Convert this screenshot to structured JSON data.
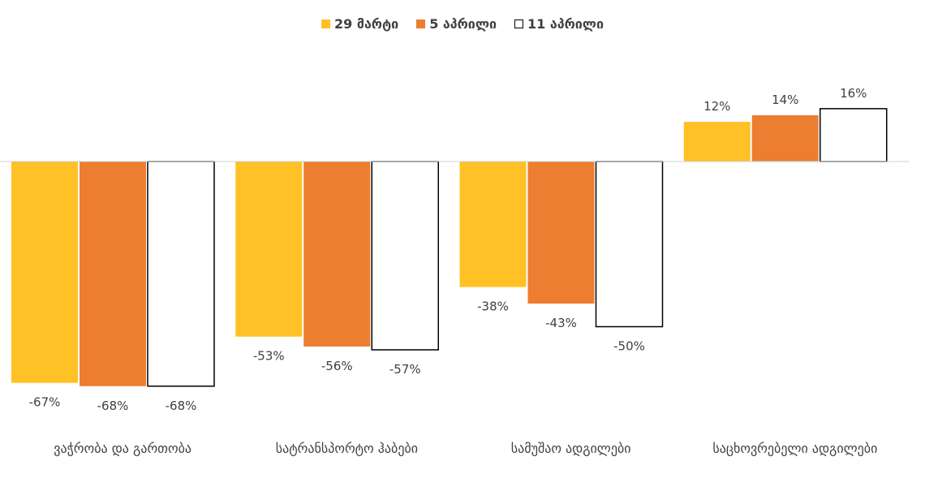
{
  "chart_data": {
    "type": "bar",
    "categories": [
      "ვაჭრობა და გართობა",
      "სატრანსპორტო ჰაბები",
      "სამუშაო ადგილები",
      "საცხოვრებელი ადგილები"
    ],
    "series": [
      {
        "name": "29 მარტი",
        "values": [
          -67,
          -53,
          -38,
          12
        ],
        "labels": [
          "-67%",
          "-53%",
          "-38%",
          "12%"
        ],
        "color": "#FFC125",
        "border": "#FFC125"
      },
      {
        "name": "5 აპრილი",
        "values": [
          -68,
          -56,
          -43,
          14
        ],
        "labels": [
          "-68%",
          "-56%",
          "-43%",
          "14%"
        ],
        "color": "#ED7D31",
        "border": "#ED7D31"
      },
      {
        "name": "11 აპრილი",
        "values": [
          -68,
          -57,
          -50,
          16
        ],
        "labels": [
          "-68%",
          "-57%",
          "-50%",
          "16%"
        ],
        "color": "#FFFFFF",
        "border": "#000000"
      }
    ],
    "ylim": [
      -80,
      40
    ],
    "legend": "top-center",
    "grid": false,
    "title": "",
    "xlabel": "",
    "ylabel": ""
  }
}
